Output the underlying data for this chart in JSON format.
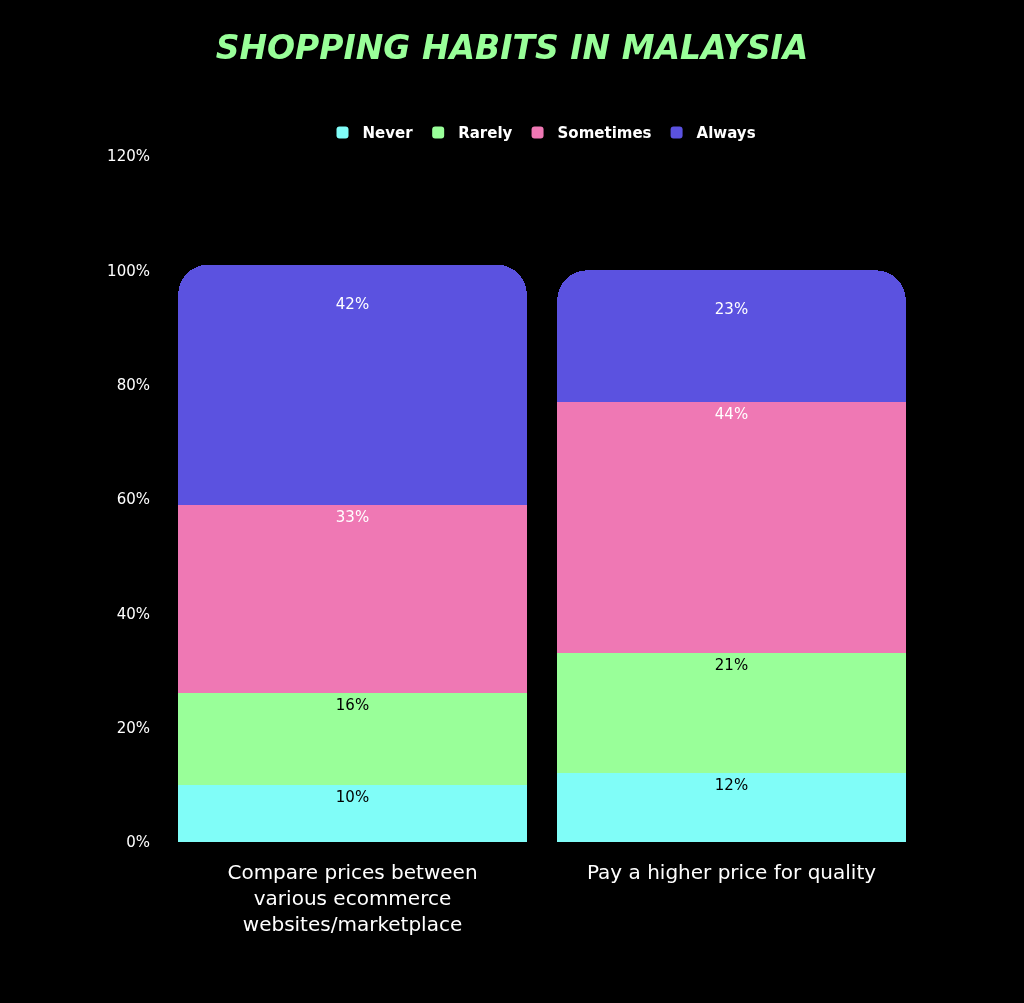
{
  "chart_data": {
    "type": "bar",
    "title": "SHOPPING HABITS IN MALAYSIA",
    "categories": [
      "Compare prices between various ecommerce websites/marketplace",
      "Pay a higher price for quality"
    ],
    "stacked": true,
    "legend": "top",
    "series": [
      {
        "name": "Never",
        "color": "#80fdf8",
        "values": [
          10,
          12
        ],
        "value_labels": [
          "10%",
          "12%"
        ]
      },
      {
        "name": "Rarely",
        "color": "#99ff99",
        "values": [
          16,
          21
        ],
        "value_labels": [
          "16%",
          "21%"
        ]
      },
      {
        "name": "Sometimes",
        "color": "#ef78b4",
        "values": [
          33,
          44
        ],
        "value_labels": [
          "33%",
          "44%"
        ]
      },
      {
        "name": "Always",
        "color": "#5b52e0",
        "values": [
          42,
          23
        ],
        "value_labels": [
          "42%",
          "23%"
        ]
      }
    ],
    "ylim": [
      0,
      120
    ],
    "yticks": [
      {
        "value": 0,
        "label": "0%"
      },
      {
        "value": 20,
        "label": "20%"
      },
      {
        "value": 40,
        "label": "40%"
      },
      {
        "value": 60,
        "label": "60%"
      },
      {
        "value": 80,
        "label": "80%"
      },
      {
        "value": 100,
        "label": "100%"
      },
      {
        "value": 120,
        "label": "120%"
      }
    ]
  }
}
